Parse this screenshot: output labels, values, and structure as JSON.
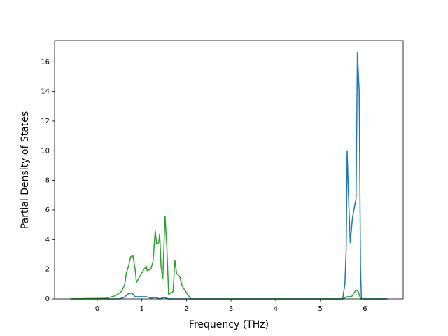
{
  "chart_data": {
    "type": "line",
    "xlabel": "Frequency (THz)",
    "ylabel": "Partial Density of States",
    "xlim": [
      -0.955,
      6.855
    ],
    "ylim": [
      0,
      17.43
    ],
    "xticks": [
      0,
      1,
      2,
      3,
      4,
      5,
      6
    ],
    "yticks": [
      0,
      2,
      4,
      6,
      8,
      10,
      12,
      14,
      16
    ],
    "grid": false,
    "series": [
      {
        "color": "#1f77b4",
        "x": [
          -0.6,
          0.5,
          0.6,
          0.7,
          0.78,
          0.85,
          1.0,
          1.1,
          1.2,
          1.3,
          1.4,
          1.5,
          1.6,
          5.5,
          5.55,
          5.58,
          5.6,
          5.63,
          5.67,
          5.72,
          5.8,
          5.83,
          5.87,
          5.9,
          5.92,
          6.5
        ],
        "values": [
          0,
          0,
          0.1,
          0.35,
          0.4,
          0.15,
          0.15,
          0.15,
          0.05,
          0.1,
          0,
          0.1,
          0,
          0,
          1.0,
          3.5,
          10.0,
          7.0,
          3.8,
          5.5,
          6.8,
          16.6,
          14.0,
          2.0,
          0,
          0
        ]
      },
      {
        "color": "#2ca02c",
        "x": [
          -0.6,
          0.2,
          0.4,
          0.55,
          0.62,
          0.65,
          0.7,
          0.75,
          0.8,
          0.85,
          0.88,
          0.95,
          1.05,
          1.1,
          1.12,
          1.2,
          1.25,
          1.3,
          1.33,
          1.38,
          1.4,
          1.43,
          1.47,
          1.52,
          1.56,
          1.6,
          1.7,
          1.74,
          1.78,
          1.85,
          1.9,
          2.0,
          2.1,
          5.5,
          5.6,
          5.7,
          5.8,
          5.85,
          5.9,
          6.5
        ],
        "values": [
          0,
          0.05,
          0.2,
          0.5,
          1.0,
          1.7,
          2.2,
          2.85,
          2.9,
          2.0,
          1.1,
          1.5,
          2.0,
          2.2,
          1.9,
          2.0,
          2.5,
          4.6,
          3.7,
          3.8,
          4.4,
          2.2,
          1.4,
          5.6,
          3.5,
          0.3,
          0.5,
          2.6,
          1.7,
          1.5,
          0.9,
          0.4,
          0,
          0,
          0.15,
          0.15,
          0.6,
          0.5,
          0,
          0
        ]
      }
    ]
  }
}
